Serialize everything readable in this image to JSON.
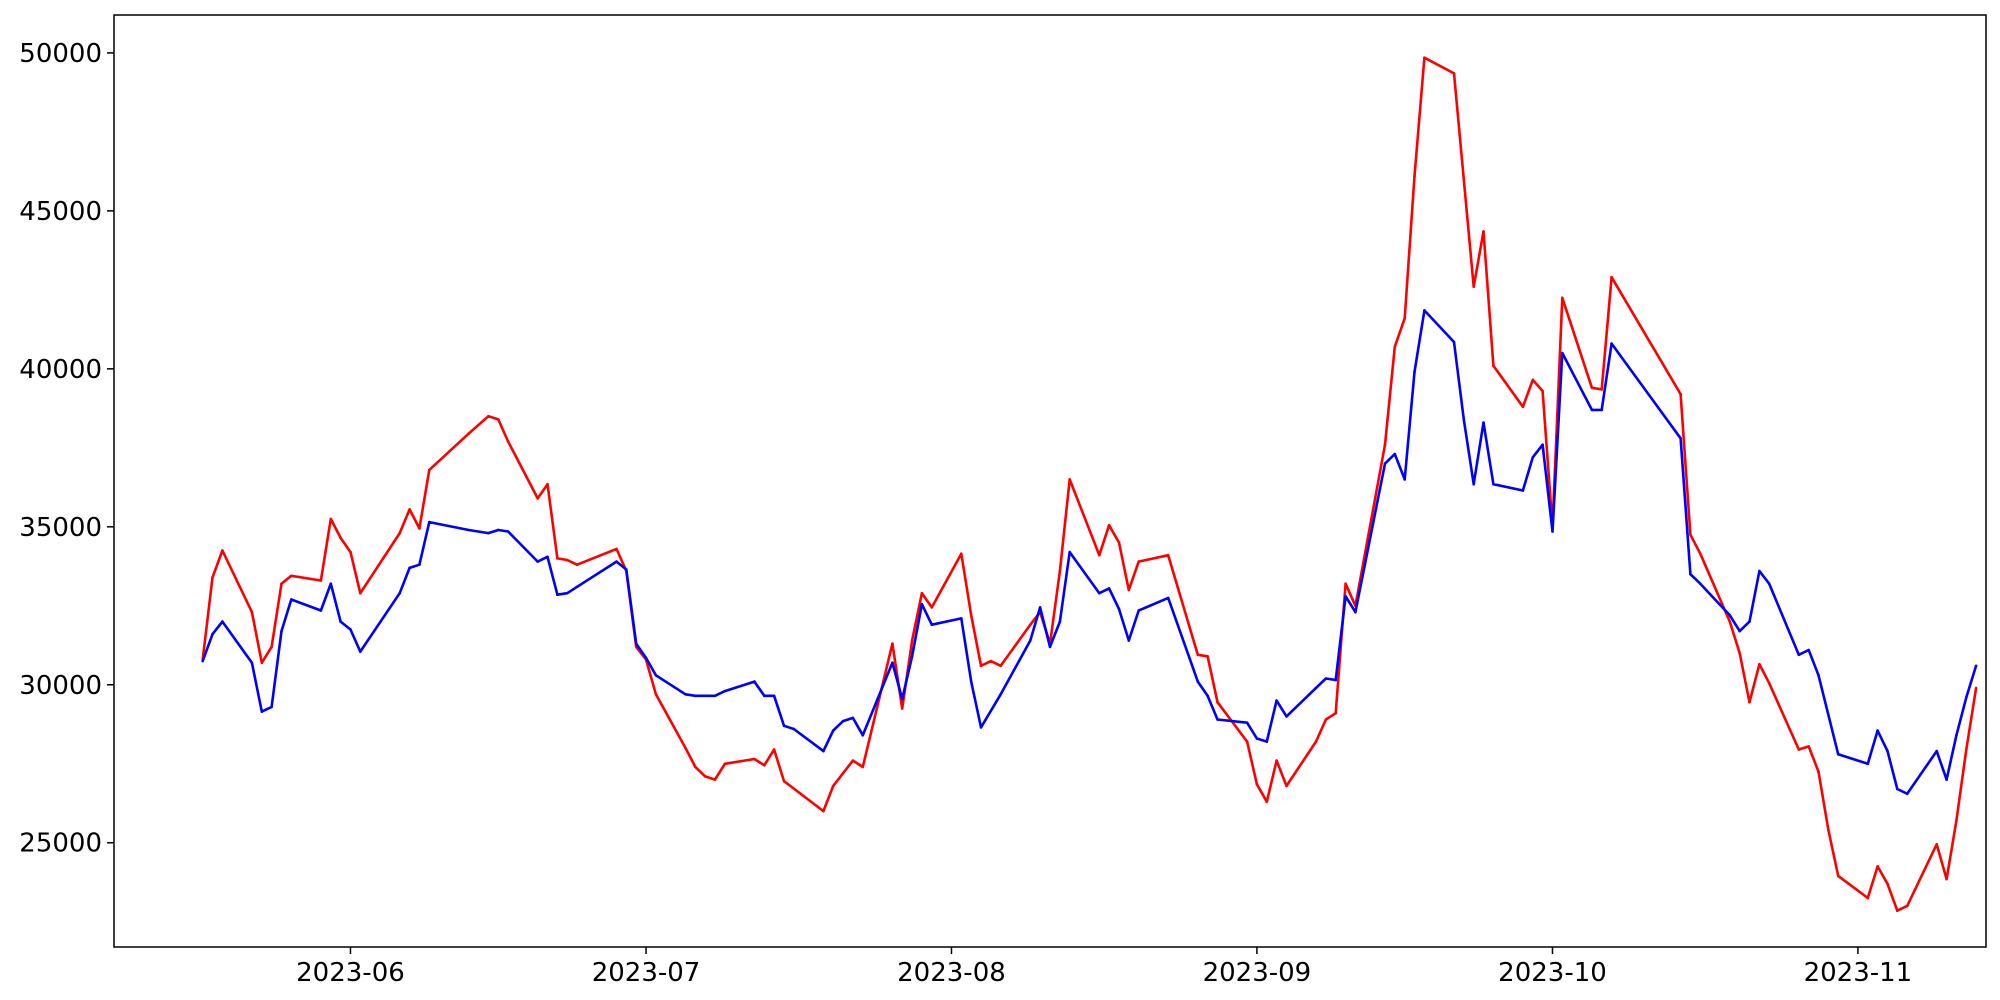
{
  "chart_data": {
    "type": "line",
    "title": "",
    "xlabel": "",
    "ylabel": "",
    "x_axis_type": "date",
    "xlim": [
      "2023-05-08",
      "2023-11-14"
    ],
    "ylim": [
      21700,
      51200
    ],
    "grid": false,
    "legend": "none",
    "x_ticks": [
      {
        "date": "2023-06-01",
        "label": "2023-06"
      },
      {
        "date": "2023-07-01",
        "label": "2023-07"
      },
      {
        "date": "2023-08-01",
        "label": "2023-08"
      },
      {
        "date": "2023-09-01",
        "label": "2023-09"
      },
      {
        "date": "2023-10-01",
        "label": "2023-10"
      },
      {
        "date": "2023-11-01",
        "label": "2023-11"
      }
    ],
    "y_ticks": [
      {
        "value": 25000,
        "label": "25000"
      },
      {
        "value": 30000,
        "label": "30000"
      },
      {
        "value": 35000,
        "label": "35000"
      },
      {
        "value": 40000,
        "label": "40000"
      },
      {
        "value": 45000,
        "label": "45000"
      },
      {
        "value": 50000,
        "label": "50000"
      }
    ],
    "series": [
      {
        "color": "#ff0000",
        "points": [
          [
            "2023-05-17",
            30800
          ],
          [
            "2023-05-18",
            33400
          ],
          [
            "2023-05-19",
            34250
          ],
          [
            "2023-05-22",
            32300
          ],
          [
            "2023-05-23",
            30700
          ],
          [
            "2023-05-24",
            31200
          ],
          [
            "2023-05-25",
            33200
          ],
          [
            "2023-05-26",
            33450
          ],
          [
            "2023-05-29",
            33300
          ],
          [
            "2023-05-30",
            35250
          ],
          [
            "2023-05-31",
            34650
          ],
          [
            "2023-06-01",
            34200
          ],
          [
            "2023-06-02",
            32900
          ],
          [
            "2023-06-06",
            34800
          ],
          [
            "2023-06-07",
            35550
          ],
          [
            "2023-06-08",
            34950
          ],
          [
            "2023-06-09",
            36800
          ],
          [
            "2023-06-13",
            37950
          ],
          [
            "2023-06-15",
            38500
          ],
          [
            "2023-06-16",
            38400
          ],
          [
            "2023-06-17",
            37700
          ],
          [
            "2023-06-20",
            35900
          ],
          [
            "2023-06-21",
            36350
          ],
          [
            "2023-06-22",
            34000
          ],
          [
            "2023-06-23",
            33950
          ],
          [
            "2023-06-24",
            33800
          ],
          [
            "2023-06-28",
            34300
          ],
          [
            "2023-06-29",
            33600
          ],
          [
            "2023-06-30",
            31200
          ],
          [
            "2023-07-01",
            30800
          ],
          [
            "2023-07-02",
            29700
          ],
          [
            "2023-07-05",
            28000
          ],
          [
            "2023-07-06",
            27400
          ],
          [
            "2023-07-07",
            27100
          ],
          [
            "2023-07-08",
            27000
          ],
          [
            "2023-07-09",
            27500
          ],
          [
            "2023-07-12",
            27650
          ],
          [
            "2023-07-13",
            27450
          ],
          [
            "2023-07-14",
            27950
          ],
          [
            "2023-07-15",
            26950
          ],
          [
            "2023-07-19",
            26000
          ],
          [
            "2023-07-20",
            26800
          ],
          [
            "2023-07-21",
            27200
          ],
          [
            "2023-07-22",
            27600
          ],
          [
            "2023-07-23",
            27400
          ],
          [
            "2023-07-26",
            31300
          ],
          [
            "2023-07-27",
            29250
          ],
          [
            "2023-07-28",
            31400
          ],
          [
            "2023-07-29",
            32900
          ],
          [
            "2023-07-30",
            32450
          ],
          [
            "2023-08-02",
            34150
          ],
          [
            "2023-08-03",
            32200
          ],
          [
            "2023-08-04",
            30600
          ],
          [
            "2023-08-05",
            30750
          ],
          [
            "2023-08-06",
            30600
          ],
          [
            "2023-08-09",
            31900
          ],
          [
            "2023-08-10",
            32300
          ],
          [
            "2023-08-11",
            31300
          ],
          [
            "2023-08-12",
            33600
          ],
          [
            "2023-08-13",
            36500
          ],
          [
            "2023-08-16",
            34100
          ],
          [
            "2023-08-17",
            35050
          ],
          [
            "2023-08-18",
            34500
          ],
          [
            "2023-08-19",
            33000
          ],
          [
            "2023-08-20",
            33900
          ],
          [
            "2023-08-23",
            34100
          ],
          [
            "2023-08-26",
            30950
          ],
          [
            "2023-08-27",
            30900
          ],
          [
            "2023-08-28",
            29450
          ],
          [
            "2023-08-31",
            28200
          ],
          [
            "2023-09-01",
            26850
          ],
          [
            "2023-09-02",
            26300
          ],
          [
            "2023-09-03",
            27600
          ],
          [
            "2023-09-04",
            26800
          ],
          [
            "2023-09-07",
            28200
          ],
          [
            "2023-09-08",
            28900
          ],
          [
            "2023-09-09",
            29100
          ],
          [
            "2023-09-10",
            33200
          ],
          [
            "2023-09-11",
            32500
          ],
          [
            "2023-09-14",
            37600
          ],
          [
            "2023-09-15",
            40700
          ],
          [
            "2023-09-16",
            41600
          ],
          [
            "2023-09-17",
            46100
          ],
          [
            "2023-09-18",
            49850
          ],
          [
            "2023-09-21",
            49350
          ],
          [
            "2023-09-23",
            42600
          ],
          [
            "2023-09-24",
            44350
          ],
          [
            "2023-09-25",
            40100
          ],
          [
            "2023-09-28",
            38800
          ],
          [
            "2023-09-29",
            39650
          ],
          [
            "2023-09-30",
            39300
          ],
          [
            "2023-10-01",
            35000
          ],
          [
            "2023-10-02",
            42250
          ],
          [
            "2023-10-05",
            39400
          ],
          [
            "2023-10-06",
            39350
          ],
          [
            "2023-10-07",
            42900
          ],
          [
            "2023-10-14",
            39200
          ],
          [
            "2023-10-15",
            34750
          ],
          [
            "2023-10-16",
            34150
          ],
          [
            "2023-10-19",
            32000
          ],
          [
            "2023-10-20",
            31000
          ],
          [
            "2023-10-21",
            29450
          ],
          [
            "2023-10-22",
            30650
          ],
          [
            "2023-10-23",
            30050
          ],
          [
            "2023-10-26",
            27950
          ],
          [
            "2023-10-27",
            28050
          ],
          [
            "2023-10-28",
            27250
          ],
          [
            "2023-10-29",
            25400
          ],
          [
            "2023-10-30",
            23950
          ],
          [
            "2023-11-02",
            23250
          ],
          [
            "2023-11-03",
            24250
          ],
          [
            "2023-11-04",
            23700
          ],
          [
            "2023-11-05",
            22850
          ],
          [
            "2023-11-06",
            23000
          ],
          [
            "2023-11-09",
            24950
          ],
          [
            "2023-11-10",
            23850
          ],
          [
            "2023-11-11",
            25700
          ],
          [
            "2023-11-12",
            27950
          ],
          [
            "2023-11-13",
            29900
          ]
        ]
      },
      {
        "color": "#0000ff",
        "points": [
          [
            "2023-05-17",
            30750
          ],
          [
            "2023-05-18",
            31600
          ],
          [
            "2023-05-19",
            32000
          ],
          [
            "2023-05-22",
            30700
          ],
          [
            "2023-05-23",
            29150
          ],
          [
            "2023-05-24",
            29300
          ],
          [
            "2023-05-25",
            31700
          ],
          [
            "2023-05-26",
            32700
          ],
          [
            "2023-05-29",
            32350
          ],
          [
            "2023-05-30",
            33200
          ],
          [
            "2023-05-31",
            32000
          ],
          [
            "2023-06-01",
            31750
          ],
          [
            "2023-06-02",
            31050
          ],
          [
            "2023-06-06",
            32900
          ],
          [
            "2023-06-07",
            33700
          ],
          [
            "2023-06-08",
            33800
          ],
          [
            "2023-06-09",
            35150
          ],
          [
            "2023-06-13",
            34900
          ],
          [
            "2023-06-15",
            34800
          ],
          [
            "2023-06-16",
            34900
          ],
          [
            "2023-06-17",
            34850
          ],
          [
            "2023-06-20",
            33900
          ],
          [
            "2023-06-21",
            34050
          ],
          [
            "2023-06-22",
            32850
          ],
          [
            "2023-06-23",
            32900
          ],
          [
            "2023-06-24",
            33100
          ],
          [
            "2023-06-28",
            33900
          ],
          [
            "2023-06-29",
            33650
          ],
          [
            "2023-06-30",
            31300
          ],
          [
            "2023-07-01",
            30850
          ],
          [
            "2023-07-02",
            30300
          ],
          [
            "2023-07-05",
            29700
          ],
          [
            "2023-07-06",
            29650
          ],
          [
            "2023-07-07",
            29650
          ],
          [
            "2023-07-08",
            29650
          ],
          [
            "2023-07-09",
            29800
          ],
          [
            "2023-07-12",
            30100
          ],
          [
            "2023-07-13",
            29650
          ],
          [
            "2023-07-14",
            29650
          ],
          [
            "2023-07-15",
            28700
          ],
          [
            "2023-07-16",
            28600
          ],
          [
            "2023-07-19",
            27900
          ],
          [
            "2023-07-20",
            28550
          ],
          [
            "2023-07-21",
            28850
          ],
          [
            "2023-07-22",
            28950
          ],
          [
            "2023-07-23",
            28400
          ],
          [
            "2023-07-26",
            30700
          ],
          [
            "2023-07-27",
            29550
          ],
          [
            "2023-07-28",
            30900
          ],
          [
            "2023-07-29",
            32550
          ],
          [
            "2023-07-30",
            31900
          ],
          [
            "2023-08-02",
            32100
          ],
          [
            "2023-08-03",
            30100
          ],
          [
            "2023-08-04",
            28650
          ],
          [
            "2023-08-06",
            29700
          ],
          [
            "2023-08-09",
            31400
          ],
          [
            "2023-08-10",
            32450
          ],
          [
            "2023-08-11",
            31200
          ],
          [
            "2023-08-12",
            32000
          ],
          [
            "2023-08-13",
            34200
          ],
          [
            "2023-08-16",
            32900
          ],
          [
            "2023-08-17",
            33050
          ],
          [
            "2023-08-18",
            32400
          ],
          [
            "2023-08-19",
            31400
          ],
          [
            "2023-08-20",
            32350
          ],
          [
            "2023-08-23",
            32750
          ],
          [
            "2023-08-26",
            30100
          ],
          [
            "2023-08-27",
            29650
          ],
          [
            "2023-08-28",
            28900
          ],
          [
            "2023-08-31",
            28800
          ],
          [
            "2023-09-01",
            28300
          ],
          [
            "2023-09-02",
            28200
          ],
          [
            "2023-09-03",
            29500
          ],
          [
            "2023-09-04",
            29000
          ],
          [
            "2023-09-07",
            29900
          ],
          [
            "2023-09-08",
            30200
          ],
          [
            "2023-09-09",
            30150
          ],
          [
            "2023-09-10",
            32800
          ],
          [
            "2023-09-11",
            32300
          ],
          [
            "2023-09-14",
            37000
          ],
          [
            "2023-09-15",
            37300
          ],
          [
            "2023-09-16",
            36500
          ],
          [
            "2023-09-17",
            39900
          ],
          [
            "2023-09-18",
            41850
          ],
          [
            "2023-09-21",
            40850
          ],
          [
            "2023-09-22",
            38400
          ],
          [
            "2023-09-23",
            36350
          ],
          [
            "2023-09-24",
            38300
          ],
          [
            "2023-09-25",
            36350
          ],
          [
            "2023-09-28",
            36150
          ],
          [
            "2023-09-29",
            37200
          ],
          [
            "2023-09-30",
            37600
          ],
          [
            "2023-10-01",
            34850
          ],
          [
            "2023-10-02",
            40500
          ],
          [
            "2023-10-05",
            38700
          ],
          [
            "2023-10-06",
            38700
          ],
          [
            "2023-10-07",
            40800
          ],
          [
            "2023-10-14",
            37800
          ],
          [
            "2023-10-15",
            33500
          ],
          [
            "2023-10-16",
            33200
          ],
          [
            "2023-10-19",
            32200
          ],
          [
            "2023-10-20",
            31700
          ],
          [
            "2023-10-21",
            32000
          ],
          [
            "2023-10-22",
            33600
          ],
          [
            "2023-10-23",
            33200
          ],
          [
            "2023-10-26",
            30950
          ],
          [
            "2023-10-27",
            31100
          ],
          [
            "2023-10-28",
            30300
          ],
          [
            "2023-10-30",
            27800
          ],
          [
            "2023-11-02",
            27500
          ],
          [
            "2023-11-03",
            28550
          ],
          [
            "2023-11-04",
            27900
          ],
          [
            "2023-11-05",
            26700
          ],
          [
            "2023-11-06",
            26550
          ],
          [
            "2023-11-09",
            27900
          ],
          [
            "2023-11-10",
            27000
          ],
          [
            "2023-11-11",
            28400
          ],
          [
            "2023-11-12",
            29600
          ],
          [
            "2023-11-13",
            30600
          ]
        ]
      }
    ]
  }
}
